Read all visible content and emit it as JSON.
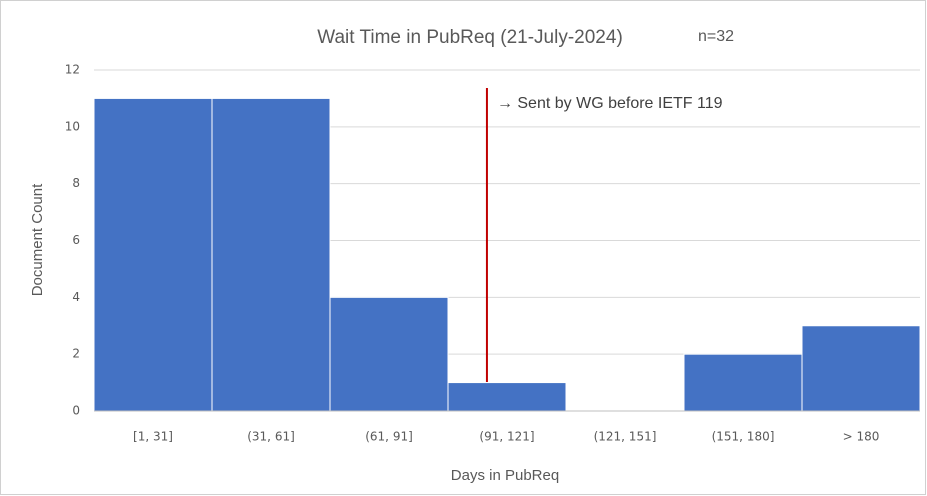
{
  "chart_data": {
    "type": "bar",
    "title": "Wait Time in PubReq (21-July-2024)",
    "annotations": [
      "n=32",
      "→ Sent by WG before IETF 119"
    ],
    "x_label": "Days in PubReq",
    "y_label": "Document Count",
    "categories": [
      "[1, 31]",
      "(31, 61]",
      "(61, 91]",
      "(91, 121]",
      "(121, 151]",
      "(151, 180]",
      "> 180"
    ],
    "values": [
      11,
      11,
      4,
      1,
      0,
      2,
      3
    ],
    "color": "#4472c4",
    "ylim": [
      0,
      12
    ],
    "yticks": [
      0,
      2,
      4,
      6,
      8,
      10,
      12
    ],
    "grid": true
  }
}
